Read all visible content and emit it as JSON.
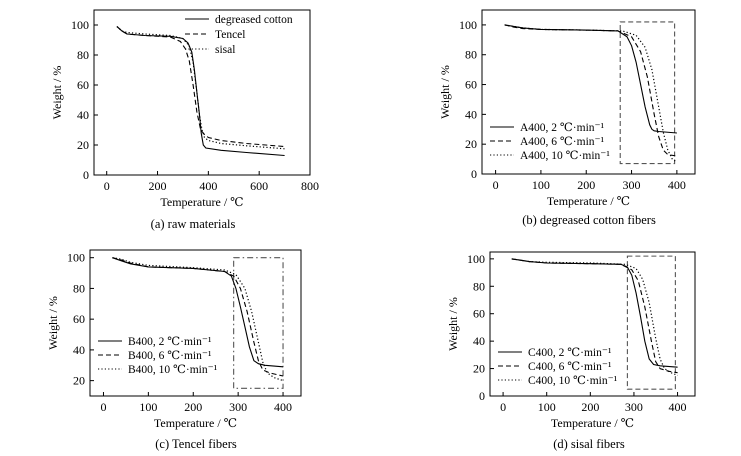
{
  "chart_data": [
    {
      "type": "line",
      "caption": "(a) raw materials",
      "xlabel": "Temperature / ℃",
      "ylabel": "Weight / %",
      "xlim": [
        -50,
        800
      ],
      "ylim": [
        0,
        110
      ],
      "xticks": [
        0,
        200,
        400,
        600,
        800
      ],
      "yticks": [
        0,
        20,
        40,
        60,
        80,
        100
      ],
      "legend_position": "top-right",
      "box": null,
      "series": [
        {
          "name": "degreased cotton",
          "style": "solid",
          "x": [
            40,
            60,
            80,
            150,
            250,
            300,
            320,
            335,
            345,
            355,
            365,
            372,
            380,
            390,
            450,
            550,
            700
          ],
          "y": [
            99,
            96,
            94,
            93,
            92.5,
            91,
            88,
            82,
            70,
            55,
            40,
            28,
            20,
            18,
            16.5,
            15,
            13
          ]
        },
        {
          "name": "Tencel",
          "style": "dashed",
          "x": [
            40,
            60,
            80,
            150,
            250,
            290,
            310,
            325,
            340,
            355,
            370,
            385,
            400,
            450,
            550,
            700
          ],
          "y": [
            99,
            96,
            94,
            93,
            92,
            89,
            84,
            76,
            60,
            42,
            30,
            27,
            25,
            23,
            21,
            19
          ]
        },
        {
          "name": "sisal",
          "style": "dotted",
          "x": [
            40,
            60,
            80,
            150,
            250,
            300,
            325,
            340,
            355,
            365,
            375,
            385,
            400,
            450,
            550,
            700
          ],
          "y": [
            99,
            96,
            95,
            94,
            93,
            91,
            86,
            75,
            55,
            40,
            30,
            25,
            23,
            21,
            19.5,
            17.5
          ]
        }
      ]
    },
    {
      "type": "line",
      "caption": "(b) degreased cotton fibers",
      "xlabel": "Temperature / ℃",
      "ylabel": "Weight / %",
      "xlim": [
        -30,
        440
      ],
      "ylim": [
        0,
        110
      ],
      "xticks": [
        0,
        100,
        200,
        300,
        400
      ],
      "yticks": [
        0,
        20,
        40,
        60,
        80,
        100
      ],
      "legend_position": "bottom-left",
      "box": {
        "style": "dashed",
        "x": [
          275,
          395
        ],
        "y": [
          7,
          102
        ]
      },
      "series": [
        {
          "name": "A400, 2  ℃·min⁻¹",
          "style": "solid",
          "x": [
            20,
            40,
            60,
            100,
            200,
            270,
            290,
            300,
            310,
            320,
            330,
            340,
            345,
            350,
            360,
            400
          ],
          "y": [
            100,
            99,
            98,
            97,
            96.5,
            96,
            92,
            86,
            75,
            60,
            45,
            33,
            30,
            29,
            28.5,
            27.5
          ]
        },
        {
          "name": "A400, 6  ℃·min⁻¹",
          "style": "dashed",
          "x": [
            20,
            40,
            60,
            100,
            200,
            270,
            300,
            320,
            335,
            350,
            360,
            370,
            380,
            400
          ],
          "y": [
            100,
            98.5,
            97.5,
            97,
            96.5,
            96,
            92,
            82,
            65,
            40,
            25,
            16,
            13,
            12
          ]
        },
        {
          "name": "A400, 10  ℃·min⁻¹",
          "style": "dotted",
          "x": [
            20,
            40,
            60,
            100,
            200,
            280,
            310,
            330,
            345,
            360,
            370,
            380,
            390,
            400
          ],
          "y": [
            100,
            99,
            98,
            97,
            96.5,
            96,
            93,
            85,
            70,
            45,
            28,
            16,
            10,
            8
          ]
        }
      ]
    },
    {
      "type": "line",
      "caption": "(c) Tencel fibers",
      "xlabel": "Temperature / ℃",
      "ylabel": "Weight / %",
      "xlim": [
        -30,
        440
      ],
      "ylim": [
        10,
        105
      ],
      "xticks": [
        0,
        100,
        200,
        300,
        400
      ],
      "yticks": [
        20,
        40,
        60,
        80,
        100
      ],
      "legend_position": "bottom-left",
      "box": {
        "style": "dash-dot",
        "x": [
          290,
          400
        ],
        "y": [
          15,
          100
        ]
      },
      "series": [
        {
          "name": "B400, 2  ℃·min⁻¹",
          "style": "solid",
          "x": [
            20,
            40,
            60,
            100,
            200,
            270,
            285,
            295,
            305,
            315,
            325,
            335,
            345,
            360,
            400
          ],
          "y": [
            100,
            98,
            96,
            94,
            93,
            91,
            88,
            80,
            68,
            55,
            42,
            33,
            31,
            30,
            29
          ]
        },
        {
          "name": "B400, 6  ℃·min⁻¹",
          "style": "dashed",
          "x": [
            20,
            40,
            60,
            100,
            200,
            270,
            290,
            305,
            320,
            335,
            345,
            355,
            370,
            400
          ],
          "y": [
            100,
            98.5,
            96.5,
            94,
            93,
            91,
            88,
            80,
            65,
            45,
            33,
            27,
            25,
            23
          ]
        },
        {
          "name": "B400, 10  ℃·min⁻¹",
          "style": "dotted",
          "x": [
            20,
            40,
            60,
            100,
            200,
            270,
            295,
            315,
            330,
            345,
            355,
            365,
            380,
            400
          ],
          "y": [
            100,
            99,
            97,
            95,
            93.5,
            92,
            89,
            80,
            65,
            45,
            32,
            25,
            22,
            20
          ]
        }
      ]
    },
    {
      "type": "line",
      "caption": "(d) sisal fibers",
      "xlabel": "Temperature / ℃",
      "ylabel": "Weight / %",
      "xlim": [
        -30,
        440
      ],
      "ylim": [
        0,
        105
      ],
      "xticks": [
        0,
        100,
        200,
        300,
        400
      ],
      "yticks": [
        0,
        20,
        40,
        60,
        80,
        100
      ],
      "legend_position": "bottom-left",
      "box": {
        "style": "dashed",
        "x": [
          285,
          395
        ],
        "y": [
          5,
          102
        ]
      },
      "series": [
        {
          "name": "C400, 2  ℃·min⁻¹",
          "style": "solid",
          "x": [
            20,
            40,
            60,
            100,
            200,
            270,
            285,
            295,
            305,
            315,
            325,
            335,
            345,
            360,
            400
          ],
          "y": [
            100,
            99,
            98,
            97,
            96.5,
            96,
            94,
            88,
            75,
            58,
            40,
            27,
            23,
            22,
            21
          ]
        },
        {
          "name": "C400, 6  ℃·min⁻¹",
          "style": "dashed",
          "x": [
            20,
            40,
            60,
            100,
            200,
            270,
            295,
            310,
            325,
            340,
            350,
            360,
            380,
            400
          ],
          "y": [
            100,
            99,
            98,
            97,
            96.5,
            96,
            92,
            84,
            65,
            40,
            25,
            20,
            18,
            17
          ]
        },
        {
          "name": "C400, 10  ℃·min⁻¹",
          "style": "dotted",
          "x": [
            20,
            40,
            60,
            100,
            200,
            280,
            305,
            320,
            335,
            350,
            360,
            370,
            385,
            400
          ],
          "y": [
            100,
            99,
            98,
            97.5,
            97,
            96,
            93,
            85,
            68,
            42,
            27,
            20,
            17,
            15
          ]
        }
      ]
    }
  ]
}
